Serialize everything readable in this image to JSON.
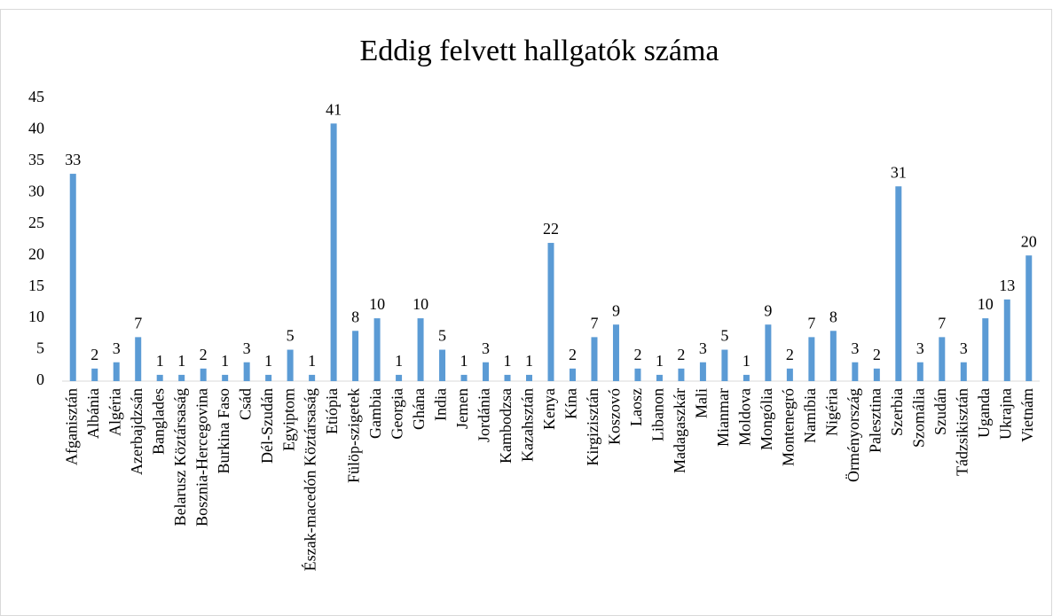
{
  "chart_data": {
    "type": "bar",
    "title": "Eddig felvett hallgatók száma",
    "categories": [
      "Afganisztán",
      "Albánia",
      "Algéria",
      "Azerbajdzsán",
      "Banglades",
      "Belarusz Köztársaság",
      "Bosznia-Hercegovina",
      "Burkina Faso",
      "Csád",
      "Dél-Szudán",
      "Egyiptom",
      "Észak-macedón Köztársaság",
      "Etiópia",
      "Fülöp-szigetek",
      "Gambia",
      "Georgia",
      "Ghána",
      "India",
      "Jemen",
      "Jordánia",
      "Kambodzsa",
      "Kazahsztán",
      "Kenya",
      "Kína",
      "Kirgizisztán",
      "Koszovó",
      "Laosz",
      "Libanon",
      "Madagaszkár",
      "Mali",
      "Mianmar",
      "Moldova",
      "Mongólia",
      "Montenegró",
      "Namíbia",
      "Nigéria",
      "Örményország",
      "Palesztina",
      "Szerbia",
      "Szomália",
      "Szudán",
      "Tádzsikisztán",
      "Uganda",
      "Ukrajna",
      "Vietnám"
    ],
    "values": [
      33,
      2,
      3,
      7,
      1,
      1,
      2,
      1,
      3,
      1,
      5,
      1,
      41,
      8,
      10,
      1,
      10,
      5,
      1,
      3,
      1,
      1,
      22,
      2,
      7,
      9,
      2,
      1,
      2,
      3,
      5,
      1,
      9,
      2,
      7,
      8,
      3,
      2,
      31,
      3,
      7,
      3,
      10,
      13,
      20
    ],
    "color": "#5b9bd5",
    "ylim": [
      0,
      45
    ],
    "yticks": [
      0,
      5,
      10,
      15,
      20,
      25,
      30,
      35,
      40,
      45
    ],
    "grid": false
  }
}
